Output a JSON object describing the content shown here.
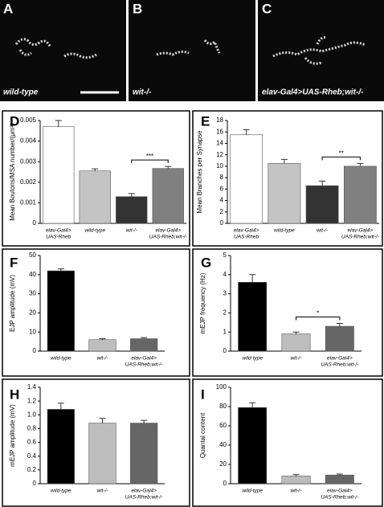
{
  "images": [
    {
      "label": "A",
      "caption": "wild-type"
    },
    {
      "label": "B",
      "caption": "wit-/-"
    },
    {
      "label": "C",
      "caption": "elav-Gal4>UAS-Rheb;wit-/-"
    }
  ],
  "chart_data": [
    {
      "type": "bar",
      "panel": "D",
      "ylabel": "Mean Boutons/MSA number/(μm²)",
      "categories": [
        [
          "elav-Gal4>",
          "UAS-Rheb"
        ],
        [
          "wild-type"
        ],
        [
          "wit-/-"
        ],
        [
          "elav-Gal4>",
          "UAS-Rheb;wit-/-"
        ]
      ],
      "values": [
        0.0047,
        0.00255,
        0.0013,
        0.00267
      ],
      "errors": [
        0.0003,
        0.0001,
        0.00015,
        0.0001
      ],
      "colors": [
        "#ffffff",
        "#c4c4c4",
        "#333333",
        "#808080"
      ],
      "ylim": [
        0,
        0.005
      ],
      "yticks": [
        0,
        0.001,
        0.002,
        0.003,
        0.004,
        0.005
      ],
      "significance": "***"
    },
    {
      "type": "bar",
      "panel": "E",
      "ylabel": "Mean Branches per Synapse",
      "categories": [
        [
          "elav-Gal4>",
          "UAS-Rheb"
        ],
        [
          "wild-type"
        ],
        [
          "wit-/-"
        ],
        [
          "elav-Gal4>",
          "UAS-Rheb;wit-/-"
        ]
      ],
      "values": [
        15.5,
        10.5,
        6.6,
        10.0
      ],
      "errors": [
        0.9,
        0.7,
        0.8,
        0.5
      ],
      "colors": [
        "#ffffff",
        "#c4c4c4",
        "#333333",
        "#808080"
      ],
      "ylim": [
        0,
        18
      ],
      "yticks": [
        0,
        2,
        4,
        6,
        8,
        10,
        12,
        14,
        16,
        18
      ],
      "significance": "**"
    },
    {
      "type": "bar",
      "panel": "F",
      "ylabel": "EJP amplitude (mV)",
      "categories": [
        [
          "wild-type"
        ],
        [
          "wit-/-"
        ],
        [
          "elav-Gal4>",
          "UAS-Rheb;wit-/-"
        ]
      ],
      "values": [
        42,
        6,
        6.5
      ],
      "errors": [
        1,
        0.5,
        0.6
      ],
      "colors": [
        "#000000",
        "#bdbdbd",
        "#666666"
      ],
      "ylim": [
        0,
        50
      ],
      "yticks": [
        0,
        10,
        20,
        30,
        40,
        50
      ]
    },
    {
      "type": "bar",
      "panel": "G",
      "ylabel": "mEJP frequency (Hz)",
      "categories": [
        [
          "wild-type"
        ],
        [
          "wit-/-"
        ],
        [
          "elav-Gal4>",
          "UAS-Rheb;wit-/-"
        ]
      ],
      "values": [
        3.6,
        0.9,
        1.3
      ],
      "errors": [
        0.4,
        0.1,
        0.15
      ],
      "colors": [
        "#000000",
        "#bdbdbd",
        "#666666"
      ],
      "ylim": [
        0,
        5
      ],
      "yticks": [
        0,
        1,
        2,
        3,
        4,
        5
      ],
      "significance": "*"
    },
    {
      "type": "bar",
      "panel": "H",
      "ylabel": "mEJP amplitude (mV)",
      "categories": [
        [
          "wild-type"
        ],
        [
          "wit-/-"
        ],
        [
          "elav-Gal4>",
          "UAS-Rheb;wit-/-"
        ]
      ],
      "values": [
        1.08,
        0.88,
        0.88
      ],
      "errors": [
        0.09,
        0.07,
        0.04
      ],
      "colors": [
        "#000000",
        "#bdbdbd",
        "#666666"
      ],
      "ylim": [
        0,
        1.4
      ],
      "yticks": [
        0,
        0.2,
        0.4,
        0.6,
        0.8,
        {
          "value": 1,
          "label": "1.0"
        },
        1.2,
        1.4
      ]
    },
    {
      "type": "bar",
      "panel": "I",
      "ylabel": "Quantal content",
      "categories": [
        [
          "wild-type"
        ],
        [
          "wit-/-"
        ],
        [
          "elav-Gal4>",
          "UAS-Rheb;wit-/-"
        ]
      ],
      "values": [
        79,
        8,
        9
      ],
      "errors": [
        5,
        1.5,
        1
      ],
      "colors": [
        "#000000",
        "#bdbdbd",
        "#666666"
      ],
      "ylim": [
        0,
        100
      ],
      "yticks": [
        0,
        20,
        40,
        60,
        80,
        100
      ]
    }
  ]
}
